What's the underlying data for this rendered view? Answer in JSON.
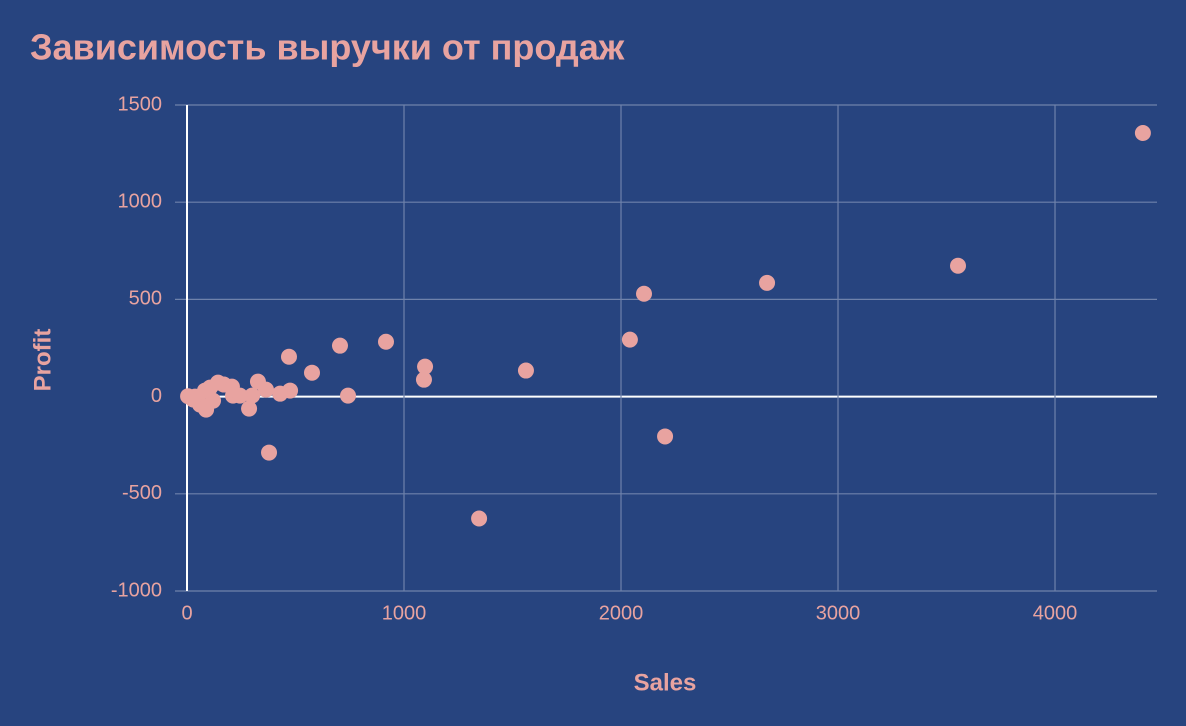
{
  "chart_data": {
    "type": "scatter",
    "title": "Зависимость выручки от продаж",
    "x_label": "Sales",
    "y_label": "Profit",
    "series": [
      {
        "color": "#e8a3a0",
        "x": [
          4405,
          3553,
          2673,
          2106,
          2041,
          2203,
          1562,
          1346,
          1097,
          1092,
          917,
          742,
          705,
          576,
          470,
          475,
          378,
          327,
          364,
          429,
          286,
          300,
          207,
          212,
          170,
          143,
          120,
          88,
          60,
          37,
          5,
          83,
          106,
          28,
          244
        ],
        "values": [
          1356,
          673,
          585,
          529,
          293,
          -205,
          134,
          -627,
          154,
          87,
          282,
          5,
          262,
          123,
          205,
          31,
          -288,
          77,
          36,
          15,
          -62,
          5,
          51,
          5,
          62,
          72,
          -21,
          -67,
          -41,
          0,
          2,
          31,
          46,
          -15,
          5
        ]
      }
    ],
    "xlim": [
      0,
      4470
    ],
    "ylim": [
      -1000,
      1500
    ],
    "xticks": [
      0,
      1000,
      2000,
      3000,
      4000
    ],
    "yticks": [
      -1000,
      -500,
      0,
      500,
      1000,
      1500
    ],
    "grid": true
  }
}
